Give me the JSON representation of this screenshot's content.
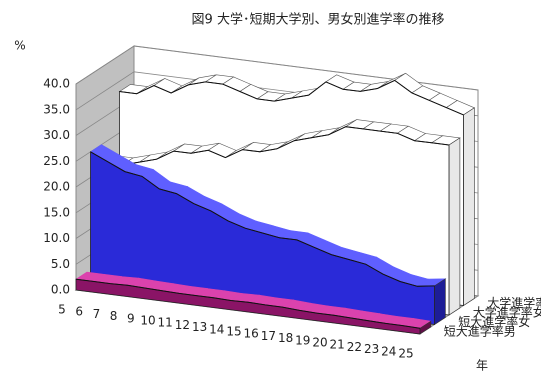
{
  "chart_data": {
    "type": "ribbon3d",
    "title": "図9  大学･短期大学別、男女別進学率の推移",
    "y_label": "%",
    "x_label": "年",
    "categories": [
      "5",
      "6",
      "7",
      "8",
      "9",
      "10",
      "11",
      "12",
      "13",
      "14",
      "15",
      "16",
      "17",
      "18",
      "19",
      "20",
      "21",
      "22",
      "23",
      "24",
      "25"
    ],
    "ylim": [
      0,
      40
    ],
    "yticks": [
      {
        "value": 0,
        "label": "0.0"
      },
      {
        "value": 5,
        "label": "5.0"
      },
      {
        "value": 10,
        "label": "10.0"
      },
      {
        "value": 15,
        "label": "15.0"
      },
      {
        "value": 20,
        "label": "20.0"
      },
      {
        "value": 25,
        "label": "25.0"
      },
      {
        "value": 30,
        "label": "30.0"
      },
      {
        "value": 35,
        "label": "35.0"
      },
      {
        "value": 40,
        "label": "40.0"
      }
    ],
    "series": [
      {
        "name": "大学進学率男",
        "color": "#ffffff",
        "values": [
          33,
          33,
          35,
          34,
          36,
          37,
          37,
          36,
          35,
          35,
          36,
          37,
          40,
          39,
          39,
          40,
          42,
          40,
          39,
          38,
          37
        ]
      },
      {
        "name": "大学進学率女",
        "color": "#ffffff",
        "values": [
          21,
          21,
          22,
          23,
          25,
          25,
          26,
          25,
          27,
          27,
          28,
          30,
          31,
          32,
          34,
          34,
          34,
          34,
          33,
          33,
          33
        ]
      },
      {
        "name": "短大進学率女",
        "color": "#2a2ad8",
        "values": [
          25,
          23.5,
          22,
          21.5,
          19.5,
          19,
          17.5,
          16.5,
          15,
          14,
          13.5,
          13,
          13,
          12,
          11,
          10.5,
          10,
          8.5,
          7.5,
          7,
          7.5
        ]
      },
      {
        "name": "短大進学率男",
        "color": "#8a1466",
        "values": [
          2.1,
          2.1,
          2.1,
          2.2,
          2.1,
          2.0,
          1.9,
          1.9,
          1.9,
          1.8,
          1.9,
          1.8,
          1.8,
          1.6,
          1.5,
          1.5,
          1.4,
          1.3,
          1.2,
          1.2,
          1.1
        ]
      }
    ]
  }
}
